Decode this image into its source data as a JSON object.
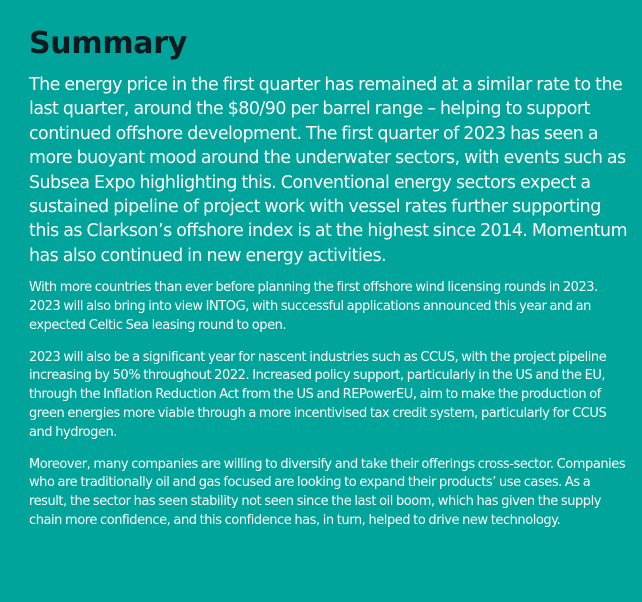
{
  "title": "Summary",
  "lead": "The energy price in the first quarter has remained at a similar rate to the last quarter, around the $80/90 per barrel range – helping to support continued offshore development. The first quarter of 2023 has seen a more buoyant mood around the underwater sectors, with events such as Subsea Expo highlighting this. Conventional energy sectors expect a sustained pipeline of project work with vessel rates further supporting this as Clarkson’s offshore index is at the highest since 2014. Momentum has also continued in new energy activities.",
  "paragraphs": [
    "With more countries than ever before planning the first offshore wind licensing rounds in 2023. 2023 will also bring into view INTOG, with successful applications announced this year and an expected Celtic Sea leasing round to open.",
    "2023 will also be a significant year for nascent industries such as CCUS, with the project pipeline increasing by 50% throughout 2022. Increased policy support, particularly in the US and the EU, through the Inflation Reduction Act from the US and REPowerEU, aim to make the production of green energies more viable through a more incentivised tax credit system, particularly for CCUS and hydrogen.",
    "Moreover, many companies are willing to diversify and take their offerings cross-sector. Companies who are traditionally oil and gas focused are looking to expand their products’ use cases. As a result, the sector has seen stability not seen since the last oil boom, which has given the supply chain more confidence, and this confidence has, in turn, helped to drive new technology."
  ],
  "colors": {
    "background": "#00a49a",
    "heading": "#0d1a1f",
    "body_text": "#ffffff"
  }
}
